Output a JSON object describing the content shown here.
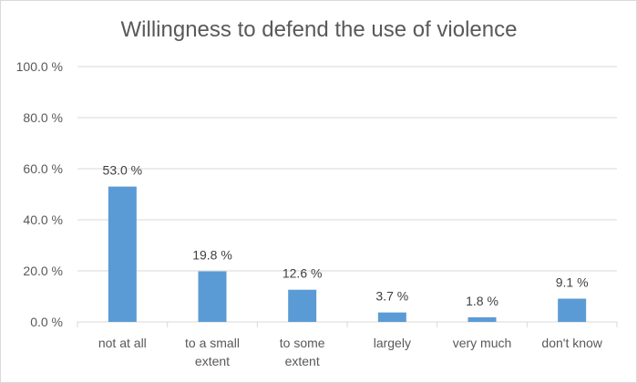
{
  "chart_data": {
    "type": "bar",
    "title": "Willingness to defend the use of violence",
    "categories": [
      [
        "not at all"
      ],
      [
        "to a small",
        "extent"
      ],
      [
        "to some",
        "extent"
      ],
      [
        "largely"
      ],
      [
        "very much"
      ],
      [
        "don't know"
      ]
    ],
    "values": [
      53.0,
      19.8,
      12.6,
      3.7,
      1.8,
      9.1
    ],
    "data_labels": [
      "53.0 %",
      "19.8 %",
      "12.6 %",
      "3.7 %",
      "1.8 %",
      "9.1 %"
    ],
    "y_ticks": [
      0,
      20,
      40,
      60,
      80,
      100
    ],
    "y_tick_labels": [
      "0.0 %",
      "20.0 %",
      "40.0 %",
      "60.0 %",
      "80.0 %",
      "100.0 %"
    ],
    "ylim": [
      0,
      100
    ],
    "bar_color": "#5b9bd5",
    "grid": true,
    "legend": "none"
  }
}
